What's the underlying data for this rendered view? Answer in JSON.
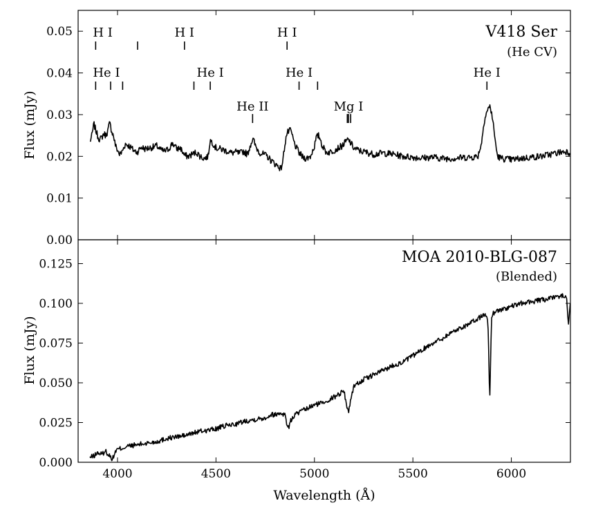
{
  "chart_data": [
    {
      "type": "line",
      "panel": "top",
      "title": "V418 Ser",
      "subtitle": "(He CV)",
      "xlabel": "Wavelength (Å)",
      "ylabel": "Flux (mJy)",
      "xlim": [
        3800,
        6300
      ],
      "ylim": [
        0.0,
        0.055
      ],
      "yticks": [
        0.0,
        0.01,
        0.02,
        0.03,
        0.04,
        0.05
      ],
      "ytick_labels": [
        "0.00",
        "0.01",
        "0.02",
        "0.03",
        "0.04",
        "0.05"
      ],
      "series": [
        {
          "name": "V418 Ser spectrum",
          "x": [
            3860,
            3870,
            3880,
            3890,
            3900,
            3910,
            3920,
            3930,
            3940,
            3950,
            3960,
            3970,
            3980,
            3990,
            4000,
            4010,
            4020,
            4040,
            4060,
            4080,
            4100,
            4120,
            4140,
            4160,
            4180,
            4200,
            4220,
            4240,
            4260,
            4280,
            4300,
            4320,
            4340,
            4360,
            4380,
            4400,
            4420,
            4440,
            4460,
            4470,
            4480,
            4500,
            4520,
            4540,
            4560,
            4580,
            4600,
            4620,
            4640,
            4660,
            4680,
            4690,
            4700,
            4720,
            4740,
            4760,
            4780,
            4800,
            4820,
            4830,
            4840,
            4850,
            4860,
            4870,
            4880,
            4890,
            4900,
            4920,
            4940,
            4960,
            4980,
            5000,
            5010,
            5020,
            5030,
            5040,
            5060,
            5080,
            5100,
            5120,
            5140,
            5160,
            5170,
            5180,
            5200,
            5220,
            5240,
            5260,
            5300,
            5350,
            5400,
            5450,
            5500,
            5550,
            5600,
            5650,
            5700,
            5750,
            5800,
            5830,
            5850,
            5860,
            5870,
            5880,
            5890,
            5900,
            5910,
            5920,
            5930,
            5950,
            6000,
            6050,
            6100,
            6150,
            6200,
            6250,
            6280,
            6300
          ],
          "y": [
            0.0235,
            0.025,
            0.0278,
            0.0262,
            0.0248,
            0.024,
            0.0245,
            0.0255,
            0.025,
            0.026,
            0.028,
            0.0262,
            0.0248,
            0.0225,
            0.0215,
            0.0205,
            0.0208,
            0.023,
            0.0225,
            0.0215,
            0.021,
            0.0222,
            0.0218,
            0.022,
            0.0222,
            0.0225,
            0.0215,
            0.0212,
            0.0218,
            0.0232,
            0.0218,
            0.022,
            0.0202,
            0.02,
            0.0205,
            0.021,
            0.02,
            0.0195,
            0.02,
            0.0238,
            0.0235,
            0.022,
            0.0218,
            0.0215,
            0.0212,
            0.0208,
            0.021,
            0.0207,
            0.0212,
            0.0205,
            0.0235,
            0.024,
            0.0225,
            0.021,
            0.0205,
            0.02,
            0.019,
            0.0182,
            0.0175,
            0.017,
            0.019,
            0.023,
            0.0255,
            0.026,
            0.0262,
            0.0245,
            0.0228,
            0.021,
            0.0198,
            0.0195,
            0.02,
            0.0225,
            0.0245,
            0.025,
            0.0242,
            0.0225,
            0.021,
            0.021,
            0.0215,
            0.022,
            0.0225,
            0.0235,
            0.024,
            0.0235,
            0.022,
            0.0215,
            0.0212,
            0.021,
            0.0205,
            0.0208,
            0.0205,
            0.02,
            0.0198,
            0.0196,
            0.0198,
            0.0195,
            0.0195,
            0.0197,
            0.0198,
            0.02,
            0.0235,
            0.028,
            0.03,
            0.0312,
            0.032,
            0.0305,
            0.027,
            0.023,
            0.02,
            0.0195,
            0.0192,
            0.0195,
            0.0198,
            0.02,
            0.0205,
            0.021,
            0.0212,
            0.0208
          ]
        }
      ],
      "line_ids": [
        {
          "label": "H I",
          "ticks": [
            3889,
            4102
          ],
          "label_x": 3889,
          "row": 1,
          "align": "start"
        },
        {
          "label": "H I",
          "ticks": [
            4340
          ],
          "label_x": 4340,
          "row": 1,
          "align": "middle"
        },
        {
          "label": "H I",
          "ticks": [
            4861
          ],
          "label_x": 4861,
          "row": 1,
          "align": "middle"
        },
        {
          "label": "He I",
          "ticks": [
            3889,
            3965,
            4026
          ],
          "label_x": 3889,
          "row": 2,
          "align": "start"
        },
        {
          "label": "He I",
          "ticks": [
            4388,
            4471
          ],
          "label_x": 4471,
          "row": 2,
          "align": "middle"
        },
        {
          "label": "He I",
          "ticks": [
            4922,
            5016
          ],
          "label_x": 4922,
          "row": 2,
          "align": "middle"
        },
        {
          "label": "He I",
          "ticks": [
            5876
          ],
          "label_x": 5876,
          "row": 2,
          "align": "middle"
        },
        {
          "label": "He II",
          "ticks": [
            4686
          ],
          "label_x": 4686,
          "row": 3,
          "align": "middle"
        },
        {
          "label": "Mg I",
          "ticks": [
            5167,
            5173,
            5184
          ],
          "label_x": 5173,
          "row": 3,
          "align": "middle"
        }
      ]
    },
    {
      "type": "line",
      "panel": "bottom",
      "title": "MOA 2010-BLG-087",
      "subtitle": "(Blended)",
      "xlabel": "Wavelength (Å)",
      "ylabel": "Flux (mJy)",
      "xlim": [
        3800,
        6300
      ],
      "ylim": [
        0.0,
        0.14
      ],
      "xticks": [
        4000,
        4500,
        5000,
        5500,
        6000
      ],
      "xtick_labels": [
        "4000",
        "4500",
        "5000",
        "5500",
        "6000"
      ],
      "yticks": [
        0.0,
        0.025,
        0.05,
        0.075,
        0.1,
        0.125
      ],
      "ytick_labels": [
        "0.000",
        "0.025",
        "0.050",
        "0.075",
        "0.100",
        "0.125"
      ],
      "series": [
        {
          "name": "MOA 2010-BLG-087 spectrum",
          "x": [
            3860,
            3880,
            3900,
            3920,
            3940,
            3960,
            3975,
            3990,
            4000,
            4050,
            4100,
            4150,
            4200,
            4250,
            4300,
            4350,
            4400,
            4450,
            4500,
            4550,
            4600,
            4650,
            4700,
            4750,
            4780,
            4800,
            4830,
            4850,
            4860,
            4870,
            4880,
            4900,
            4950,
            5000,
            5050,
            5100,
            5150,
            5165,
            5175,
            5185,
            5200,
            5250,
            5300,
            5350,
            5400,
            5450,
            5500,
            5550,
            5600,
            5650,
            5700,
            5750,
            5800,
            5850,
            5870,
            5880,
            5885,
            5890,
            5895,
            5900,
            5910,
            5920,
            5950,
            6000,
            6050,
            6100,
            6150,
            6200,
            6230,
            6260,
            6280,
            6290,
            6300
          ],
          "y": [
            0.003,
            0.004,
            0.006,
            0.005,
            0.007,
            0.004,
            0.002,
            0.007,
            0.008,
            0.01,
            0.011,
            0.012,
            0.013,
            0.015,
            0.016,
            0.017,
            0.019,
            0.02,
            0.021,
            0.023,
            0.024,
            0.026,
            0.027,
            0.028,
            0.03,
            0.03,
            0.031,
            0.03,
            0.024,
            0.022,
            0.026,
            0.03,
            0.033,
            0.036,
            0.038,
            0.041,
            0.045,
            0.035,
            0.032,
            0.04,
            0.048,
            0.052,
            0.055,
            0.058,
            0.061,
            0.063,
            0.067,
            0.071,
            0.075,
            0.078,
            0.082,
            0.085,
            0.088,
            0.092,
            0.093,
            0.09,
            0.07,
            0.036,
            0.068,
            0.092,
            0.094,
            0.095,
            0.096,
            0.098,
            0.1,
            0.101,
            0.102,
            0.103,
            0.104,
            0.105,
            0.103,
            0.088,
            0.1
          ]
        }
      ]
    }
  ]
}
